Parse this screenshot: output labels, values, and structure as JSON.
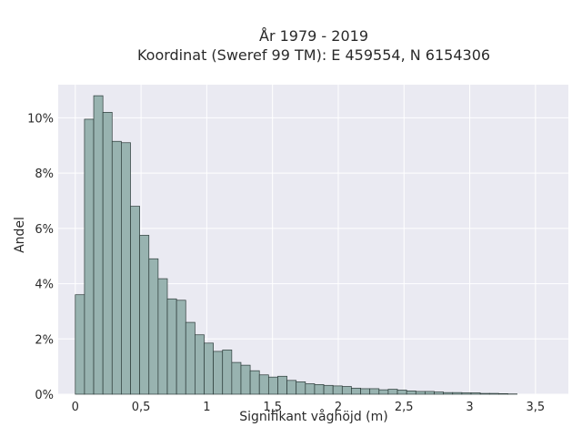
{
  "chart_data": {
    "type": "bar",
    "title": "År 1979 - 2019",
    "subtitle": "Koordinat (Sweref 99 TM): E 459554, N 6154306",
    "xlabel": "Signifikant våghöjd (m)",
    "ylabel": "Andel",
    "xlim": [
      -0.13,
      3.75
    ],
    "ylim": [
      0,
      11.2
    ],
    "x_ticks": [
      0,
      0.5,
      1,
      1.5,
      2,
      2.5,
      3,
      3.5
    ],
    "x_tick_labels": [
      "0",
      "0,5",
      "1",
      "1,5",
      "2",
      "2,5",
      "3",
      "3,5"
    ],
    "y_ticks": [
      0,
      2,
      4,
      6,
      8,
      10
    ],
    "y_tick_labels": [
      "0%",
      "2%",
      "4%",
      "6%",
      "8%",
      "10%"
    ],
    "grid": true,
    "bin_width": 0.07,
    "bin_start": 0.0,
    "values": [
      3.6,
      9.95,
      10.8,
      10.2,
      9.15,
      9.1,
      6.8,
      5.75,
      4.9,
      4.18,
      3.45,
      3.4,
      2.6,
      2.15,
      1.85,
      1.55,
      1.6,
      1.15,
      1.05,
      0.85,
      0.7,
      0.62,
      0.65,
      0.5,
      0.45,
      0.38,
      0.35,
      0.32,
      0.3,
      0.28,
      0.22,
      0.2,
      0.2,
      0.16,
      0.18,
      0.15,
      0.12,
      0.1,
      0.1,
      0.08,
      0.06,
      0.06,
      0.05,
      0.05,
      0.03,
      0.03,
      0.02,
      0.01
    ],
    "colors": {
      "bar_fill": "#98b3b0",
      "bar_edge": "#2c3b39",
      "plot_background": "#eaeaf2",
      "grid": "#ffffff"
    }
  }
}
